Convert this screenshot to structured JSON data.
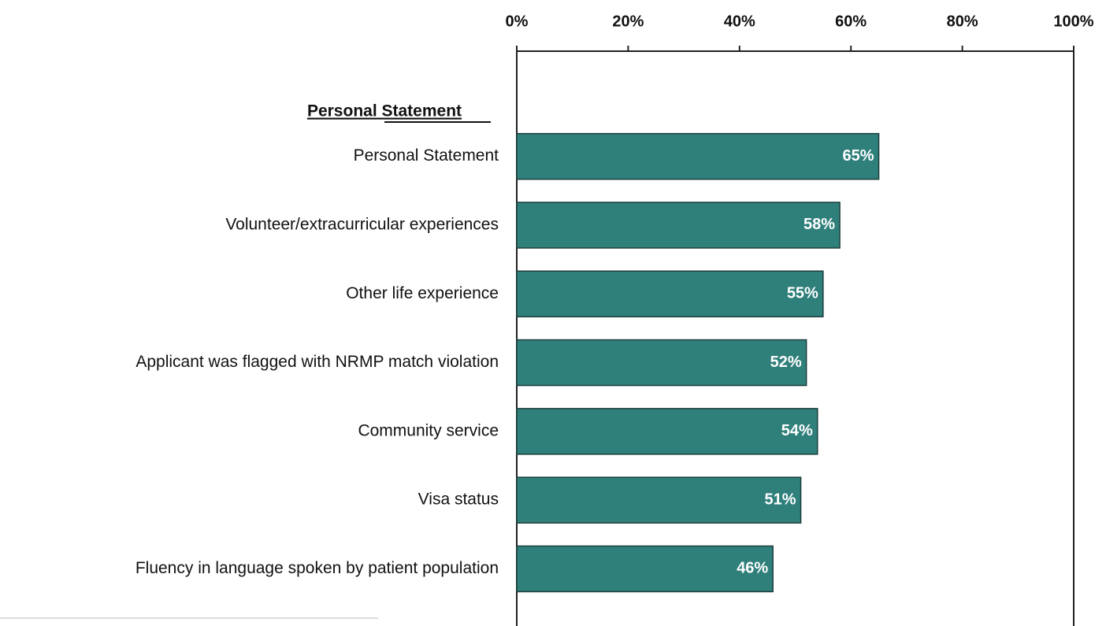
{
  "chart_data": {
    "type": "bar",
    "orientation": "horizontal",
    "group_label": "Personal Statement",
    "categories": [
      "Personal Statement",
      "Volunteer/extracurricular experiences",
      "Other life experience",
      "Applicant was flagged with NRMP match violation",
      "Community service",
      "Visa status",
      "Fluency in language spoken by patient population"
    ],
    "values": [
      65,
      58,
      55,
      52,
      54,
      51,
      46
    ],
    "value_labels": [
      "65%",
      "58%",
      "55%",
      "52%",
      "54%",
      "51%",
      "46%"
    ],
    "color": "#2f7f7b",
    "xlim": [
      0,
      100
    ],
    "xticks": [
      {
        "value": 0,
        "label": "0%"
      },
      {
        "value": 20,
        "label": "20%"
      },
      {
        "value": 40,
        "label": "40%"
      },
      {
        "value": 60,
        "label": "60%"
      },
      {
        "value": 80,
        "label": "80%"
      },
      {
        "value": 100,
        "label": "100%"
      }
    ],
    "axis_position": "top"
  }
}
